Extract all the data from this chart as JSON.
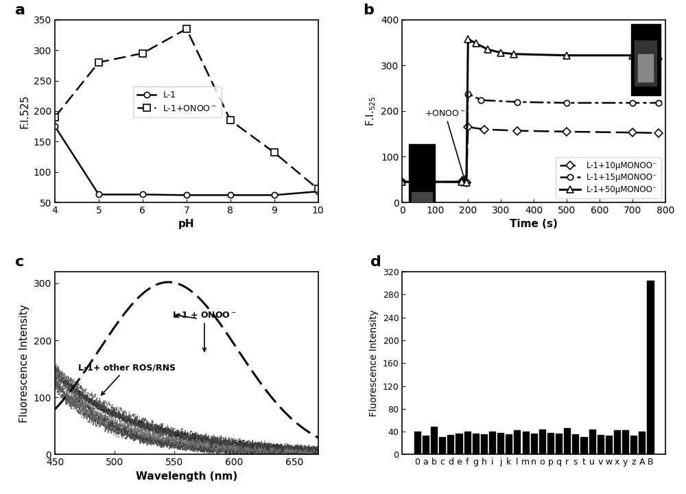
{
  "panel_a": {
    "label": "a",
    "L1_x": [
      4,
      5,
      6,
      7,
      8,
      9,
      10
    ],
    "L1_y": [
      175,
      63,
      63,
      62,
      62,
      62,
      68
    ],
    "ONOO_x": [
      4,
      5,
      6,
      7,
      8,
      9,
      10
    ],
    "ONOO_y": [
      190,
      280,
      295,
      335,
      185,
      132,
      72
    ],
    "xlabel": "pH",
    "ylabel": "F.I.525",
    "ylim": [
      50,
      350
    ],
    "xlim": [
      4,
      10
    ],
    "yticks": [
      50,
      100,
      150,
      200,
      250,
      300,
      350
    ],
    "xticks": [
      4,
      5,
      6,
      7,
      8,
      9,
      10
    ]
  },
  "panel_b": {
    "label": "b",
    "series_10_x": [
      0,
      50,
      180,
      195,
      200,
      250,
      350,
      500,
      700,
      780
    ],
    "series_10_y": [
      45,
      45,
      45,
      44,
      165,
      160,
      157,
      155,
      153,
      152
    ],
    "series_15_x": [
      0,
      50,
      180,
      195,
      200,
      240,
      350,
      500,
      700,
      780
    ],
    "series_15_y": [
      45,
      45,
      45,
      44,
      238,
      224,
      220,
      218,
      218,
      218
    ],
    "series_50_x": [
      0,
      50,
      180,
      195,
      200,
      225,
      260,
      300,
      340,
      500,
      700,
      780
    ],
    "series_50_y": [
      45,
      45,
      45,
      44,
      358,
      348,
      335,
      328,
      325,
      322,
      322,
      320
    ],
    "xlabel": "Time (s)",
    "ylabel": "F.I.₅₂₅",
    "ylim": [
      0,
      400
    ],
    "xlim": [
      0,
      800
    ],
    "yticks": [
      0,
      100,
      200,
      300,
      400
    ],
    "xticks": [
      0,
      100,
      200,
      300,
      400,
      500,
      600,
      700,
      800
    ],
    "annotation_text": "+ONOO⁻",
    "legend_10": "L-1+10μMONOO⁻",
    "legend_15": "L-1+15μMONOO⁻",
    "legend_50": "L-1+50μMONOO⁻"
  },
  "panel_c": {
    "label": "c",
    "xlabel": "Wavelength (nm)",
    "ylabel": "Fluorescence Intensity",
    "ylim": [
      0,
      320
    ],
    "xlim": [
      450,
      670
    ],
    "yticks": [
      0,
      100,
      200,
      300
    ],
    "xticks": [
      450,
      500,
      550,
      600,
      650
    ],
    "onoo_peak_x": 545,
    "onoo_peak_y": 302,
    "annotation_onoo": "L-1 + ONOO⁻",
    "annotation_ros": "L-1+ other ROS/RNS"
  },
  "panel_d": {
    "label": "d",
    "categories": [
      "0",
      "a",
      "b",
      "c",
      "d",
      "e",
      "f",
      "g",
      "h",
      "i",
      "j",
      "k",
      "l",
      "m",
      "n",
      "o",
      "p",
      "q",
      "r",
      "s",
      "t",
      "u",
      "v",
      "w",
      "x",
      "y",
      "z",
      "A",
      "B"
    ],
    "values": [
      40,
      33,
      48,
      30,
      34,
      36,
      40,
      37,
      35,
      40,
      38,
      35,
      43,
      40,
      37,
      44,
      38,
      37,
      46,
      35,
      30,
      44,
      34,
      33,
      42,
      42,
      33,
      40,
      305
    ],
    "ylabel": "Fluorescence Intensity",
    "ylim": [
      0,
      320
    ],
    "yticks": [
      0,
      40,
      80,
      120,
      160,
      200,
      240,
      280,
      320
    ]
  },
  "bg_color": "#ffffff"
}
